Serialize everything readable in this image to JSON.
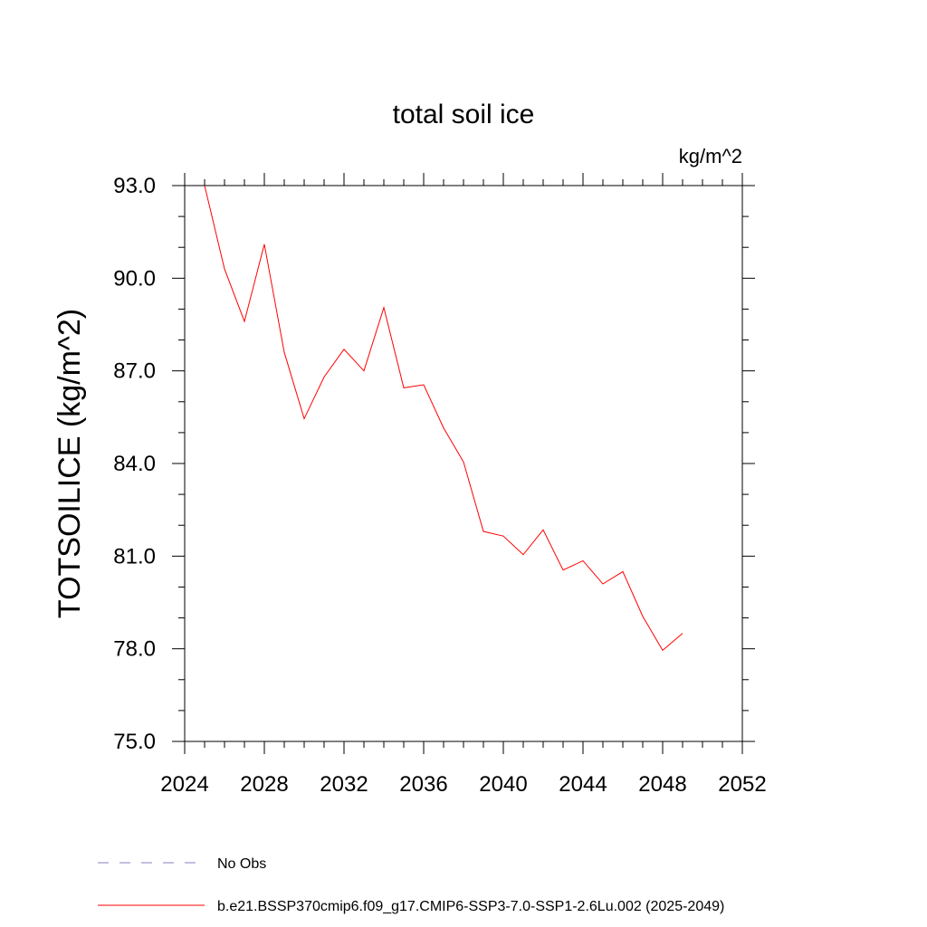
{
  "chart_data": {
    "type": "line",
    "title": "total soil ice",
    "units": "kg/m^2",
    "xlabel": "",
    "ylabel": "TOTSOILICE  (kg/m^2)",
    "xlim": [
      2024,
      2052
    ],
    "ylim": [
      75.0,
      93.0
    ],
    "x_ticks": [
      2024,
      2028,
      2032,
      2036,
      2040,
      2044,
      2048,
      2052
    ],
    "x_tick_labels": [
      "2024",
      "2028",
      "2032",
      "2036",
      "2040",
      "2044",
      "2048",
      "2052"
    ],
    "x_minor_step": 1,
    "y_ticks": [
      75.0,
      78.0,
      81.0,
      84.0,
      87.0,
      90.0,
      93.0
    ],
    "y_tick_labels": [
      "75.0",
      "78.0",
      "81.0",
      "84.0",
      "87.0",
      "90.0",
      "93.0"
    ],
    "y_minor_step": 1.0,
    "grid": false,
    "legend_placement": "bottom-left",
    "series": [
      {
        "name": "b.e21.BSSP370cmip6.f09_g17.CMIP6-SSP3-7.0-SSP1-2.6Lu.002 (2025-2049)",
        "color": "#ff0000",
        "x": [
          2025,
          2026,
          2027,
          2028,
          2029,
          2030,
          2031,
          2032,
          2033,
          2034,
          2035,
          2036,
          2037,
          2038,
          2039,
          2040,
          2041,
          2042,
          2043,
          2044,
          2045,
          2046,
          2047,
          2048,
          2049
        ],
        "values": [
          93.0,
          90.3,
          88.6,
          91.1,
          87.6,
          85.45,
          86.8,
          87.7,
          87.0,
          89.05,
          86.45,
          86.55,
          85.15,
          84.05,
          81.8,
          81.65,
          81.05,
          81.85,
          80.55,
          80.85,
          80.1,
          80.5,
          79.05,
          77.95,
          78.5
        ]
      }
    ],
    "legend": [
      {
        "label": "No Obs",
        "color": "#8a7fc0",
        "dash": "12,12"
      },
      {
        "label": "b.e21.BSSP370cmip6.f09_g17.CMIP6-SSP3-7.0-SSP1-2.6Lu.002 (2025-2049)",
        "color": "#ff0000",
        "dash": ""
      }
    ]
  }
}
